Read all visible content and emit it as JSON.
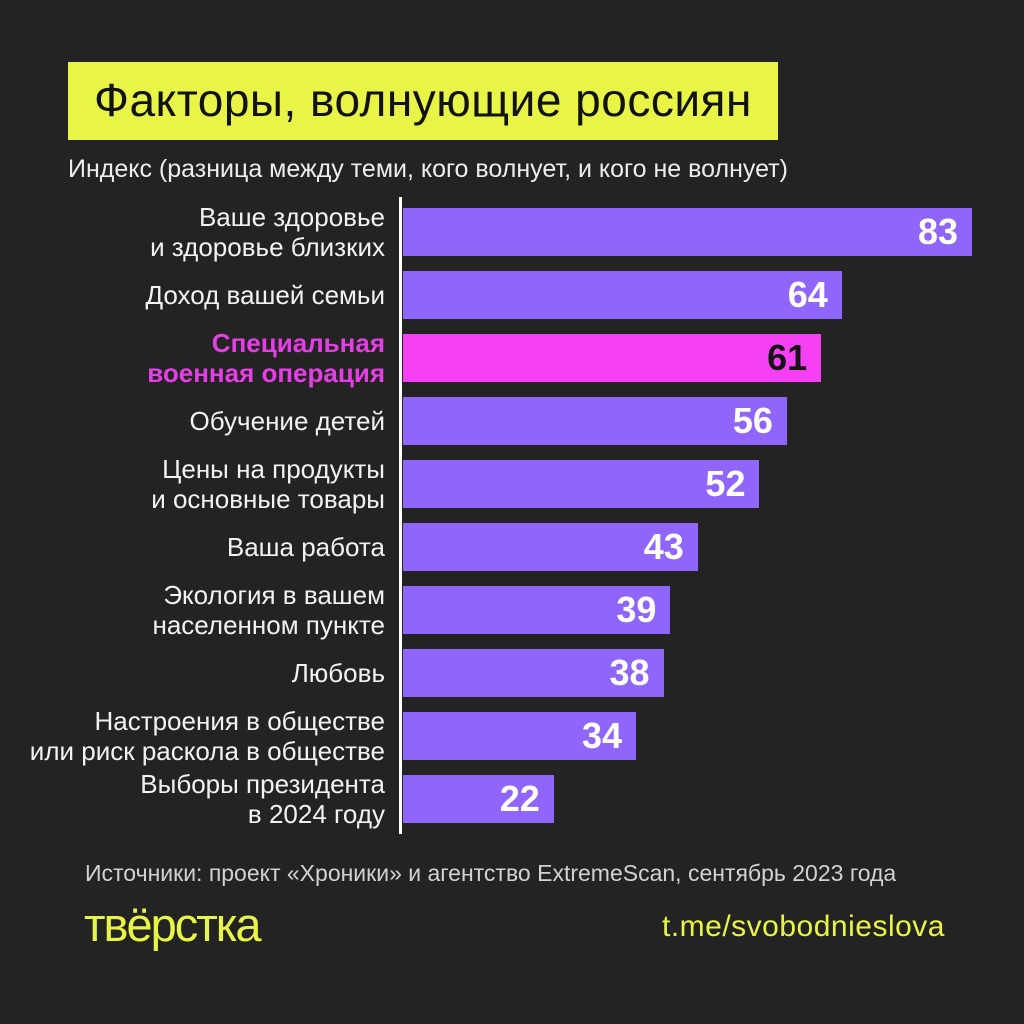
{
  "title": "Факторы, волнующие россиян",
  "subtitle": "Индекс (разница между теми, кого волнует, и кого не волнует)",
  "chart_data": {
    "type": "bar",
    "orientation": "horizontal",
    "title": "Факторы, волнующие россиян",
    "xlabel": "",
    "ylabel": "",
    "xlim": [
      0,
      83
    ],
    "grid": false,
    "categories": [
      "Ваше здоровье и здоровье близких",
      "Доход вашей семьи",
      "Специальная военная операция",
      "Обучение детей",
      "Цены на продукты и основные товары",
      "Ваша работа",
      "Экология в вашем населенном пункте",
      "Любовь",
      "Настроения в обществе или риск раскола в обществе",
      "Выборы президента в 2024 году"
    ],
    "values": [
      83,
      64,
      61,
      56,
      52,
      43,
      39,
      38,
      34,
      22
    ],
    "highlight_category": "Специальная военная операция",
    "rows": [
      {
        "label": "Ваше здоровье\nи здоровье близких",
        "value": 83,
        "highlight": false
      },
      {
        "label": "Доход вашей семьи",
        "value": 64,
        "highlight": false
      },
      {
        "label": "Специальная\nвоенная операция",
        "value": 61,
        "highlight": true
      },
      {
        "label": "Обучение детей",
        "value": 56,
        "highlight": false
      },
      {
        "label": "Цены на продукты\nи основные товары",
        "value": 52,
        "highlight": false
      },
      {
        "label": "Ваша работа",
        "value": 43,
        "highlight": false
      },
      {
        "label": "Экология в вашем\nнаселенном пункте",
        "value": 39,
        "highlight": false
      },
      {
        "label": "Любовь",
        "value": 38,
        "highlight": false
      },
      {
        "label": "Настроения в обществе\nили риск раскола в обществе",
        "value": 34,
        "highlight": false
      },
      {
        "label": "Выборы президента\nв 2024 году",
        "value": 22,
        "highlight": false
      }
    ]
  },
  "colors": {
    "background": "#232323",
    "accent_yellow": "#e9f546",
    "bar_purple": "#9065fa",
    "bar_magenta": "#f440f2",
    "highlight_label": "#e43fe4",
    "label_white": "#f2f2f2",
    "value_on_highlight": "#151515",
    "sources_gray": "#d2d2d2"
  },
  "footer": {
    "sources": "Источники: проект «Хроники» и агентство ExtremeScan, сентябрь 2023 года",
    "logo": "твёрстка",
    "link": "t.me/svobodnieslova"
  }
}
